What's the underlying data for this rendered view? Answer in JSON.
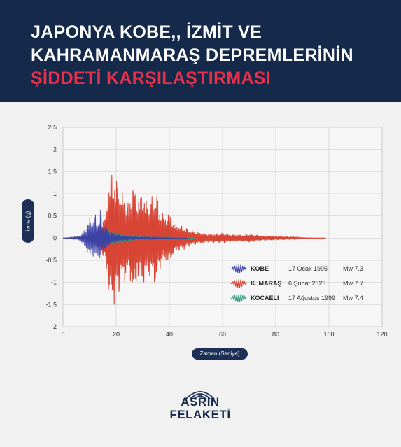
{
  "header": {
    "title_line1": "JAPONYA KOBE,, İZMİT VE",
    "title_line2": "KAHRAMANMARAŞ DEPREMLERİNİN",
    "title_line3": "ŞİDDETİ KARŞILAŞTIRMASI"
  },
  "chart_data": {
    "type": "line",
    "ylabel": "ivme (g)",
    "xlabel": "Zaman (Saniye)",
    "xlim": [
      0,
      120
    ],
    "ylim": [
      -2,
      2.5
    ],
    "x_ticks": [
      "0",
      "20",
      "40",
      "60",
      "80",
      "100",
      "120"
    ],
    "y_ticks": [
      "-2",
      "-1.5",
      "-1",
      "-0.5",
      "0",
      "0.5",
      "1",
      "1.5",
      "2",
      "2.5"
    ],
    "grid": true,
    "legend_position": "bottom-right",
    "series": [
      {
        "name": "KOBE",
        "date": "17 Ocak 1995",
        "magnitude": "Mw 7.3",
        "color": "#3a3fa8",
        "x": [
          0,
          4,
          6,
          7,
          8,
          9,
          10,
          11,
          12,
          13,
          14,
          15,
          16,
          17,
          18,
          20,
          25,
          30,
          40,
          47
        ],
        "y": [
          0,
          0.02,
          -0.05,
          0.1,
          -0.2,
          0.3,
          -0.5,
          0.4,
          -0.6,
          0.35,
          -0.7,
          0.3,
          -0.4,
          0.2,
          -0.15,
          0.1,
          -0.05,
          0.03,
          0.01,
          0
        ]
      },
      {
        "name": "K. MARAŞ",
        "date": "6 Şubat 2023",
        "magnitude": "Mw 7.7",
        "color": "#d63b2a",
        "x": [
          0,
          10,
          14,
          16,
          17,
          18,
          19,
          20,
          21,
          22,
          23,
          24,
          25,
          26,
          27,
          28,
          29,
          30,
          31,
          32,
          33,
          34,
          35,
          36,
          37,
          38,
          40,
          42,
          44,
          46,
          50,
          55,
          60,
          65,
          70,
          75,
          80,
          84,
          90,
          99
        ],
        "y": [
          0,
          0.05,
          -0.3,
          0.6,
          -1.2,
          1.55,
          -1.6,
          1.3,
          -1.4,
          1.0,
          -1.1,
          0.8,
          -0.9,
          1.2,
          -1.3,
          0.9,
          -1.0,
          1.15,
          -0.9,
          0.8,
          -1.0,
          0.9,
          -1.2,
          0.7,
          -0.7,
          0.5,
          -0.6,
          0.35,
          -0.3,
          0.25,
          -0.15,
          0.1,
          -0.12,
          0.08,
          -0.1,
          0.06,
          -0.05,
          0.04,
          0.01,
          0
        ]
      },
      {
        "name": "KOCAELİ",
        "date": "17 Ağustos 1999",
        "magnitude": "Mw 7.4",
        "color": "#2b9a7e",
        "x": [
          0,
          8,
          10,
          12,
          14,
          16,
          18,
          20,
          22,
          24,
          26,
          28,
          30,
          35,
          40,
          45,
          50
        ],
        "y": [
          0,
          0.03,
          -0.08,
          0.12,
          -0.15,
          0.2,
          -0.18,
          0.15,
          -0.12,
          0.1,
          -0.08,
          0.06,
          -0.05,
          0.03,
          -0.02,
          0.01,
          0
        ]
      }
    ]
  },
  "brand": {
    "line1": "ASRIN",
    "line2": "FELAKETİ"
  }
}
